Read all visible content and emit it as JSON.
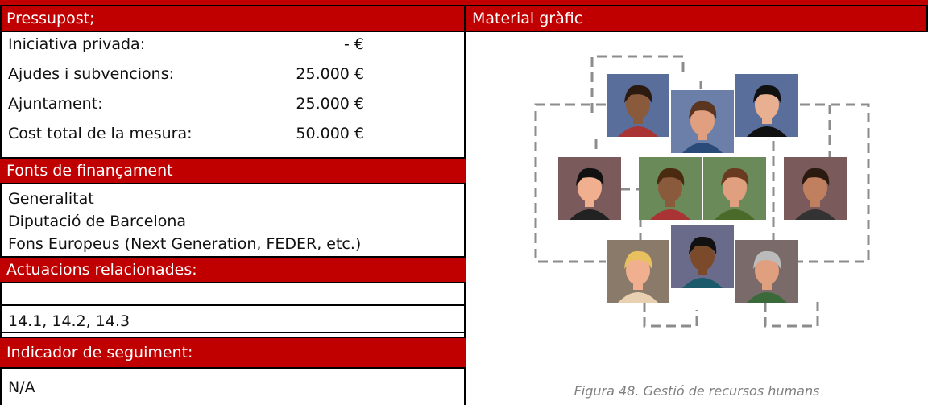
{
  "budget": {
    "title": "Pressupost;",
    "rows": [
      {
        "label": "Iniciativa privada:",
        "value": "- €"
      },
      {
        "label": "Ajudes i subvencions:",
        "value": "25.000 €"
      },
      {
        "label": "Ajuntament:",
        "value": "25.000 €"
      },
      {
        "label": "Cost total de la mesura:",
        "value": "50.000 €"
      }
    ]
  },
  "funding": {
    "title": "Fonts de finançament",
    "items": [
      "Generalitat",
      "Diputació de Barcelona",
      "Fons Europeus (Next Generation, FEDER, etc.)"
    ]
  },
  "related_actions": {
    "title": "Actuacions relacionades:",
    "text": "14.1, 14.2, 14.3"
  },
  "indicator": {
    "title": "Indicador de seguiment:",
    "text": "N/A"
  },
  "graphic": {
    "title": "Material gràfic",
    "caption": "Figura 48. Gestió de recursos humans"
  }
}
